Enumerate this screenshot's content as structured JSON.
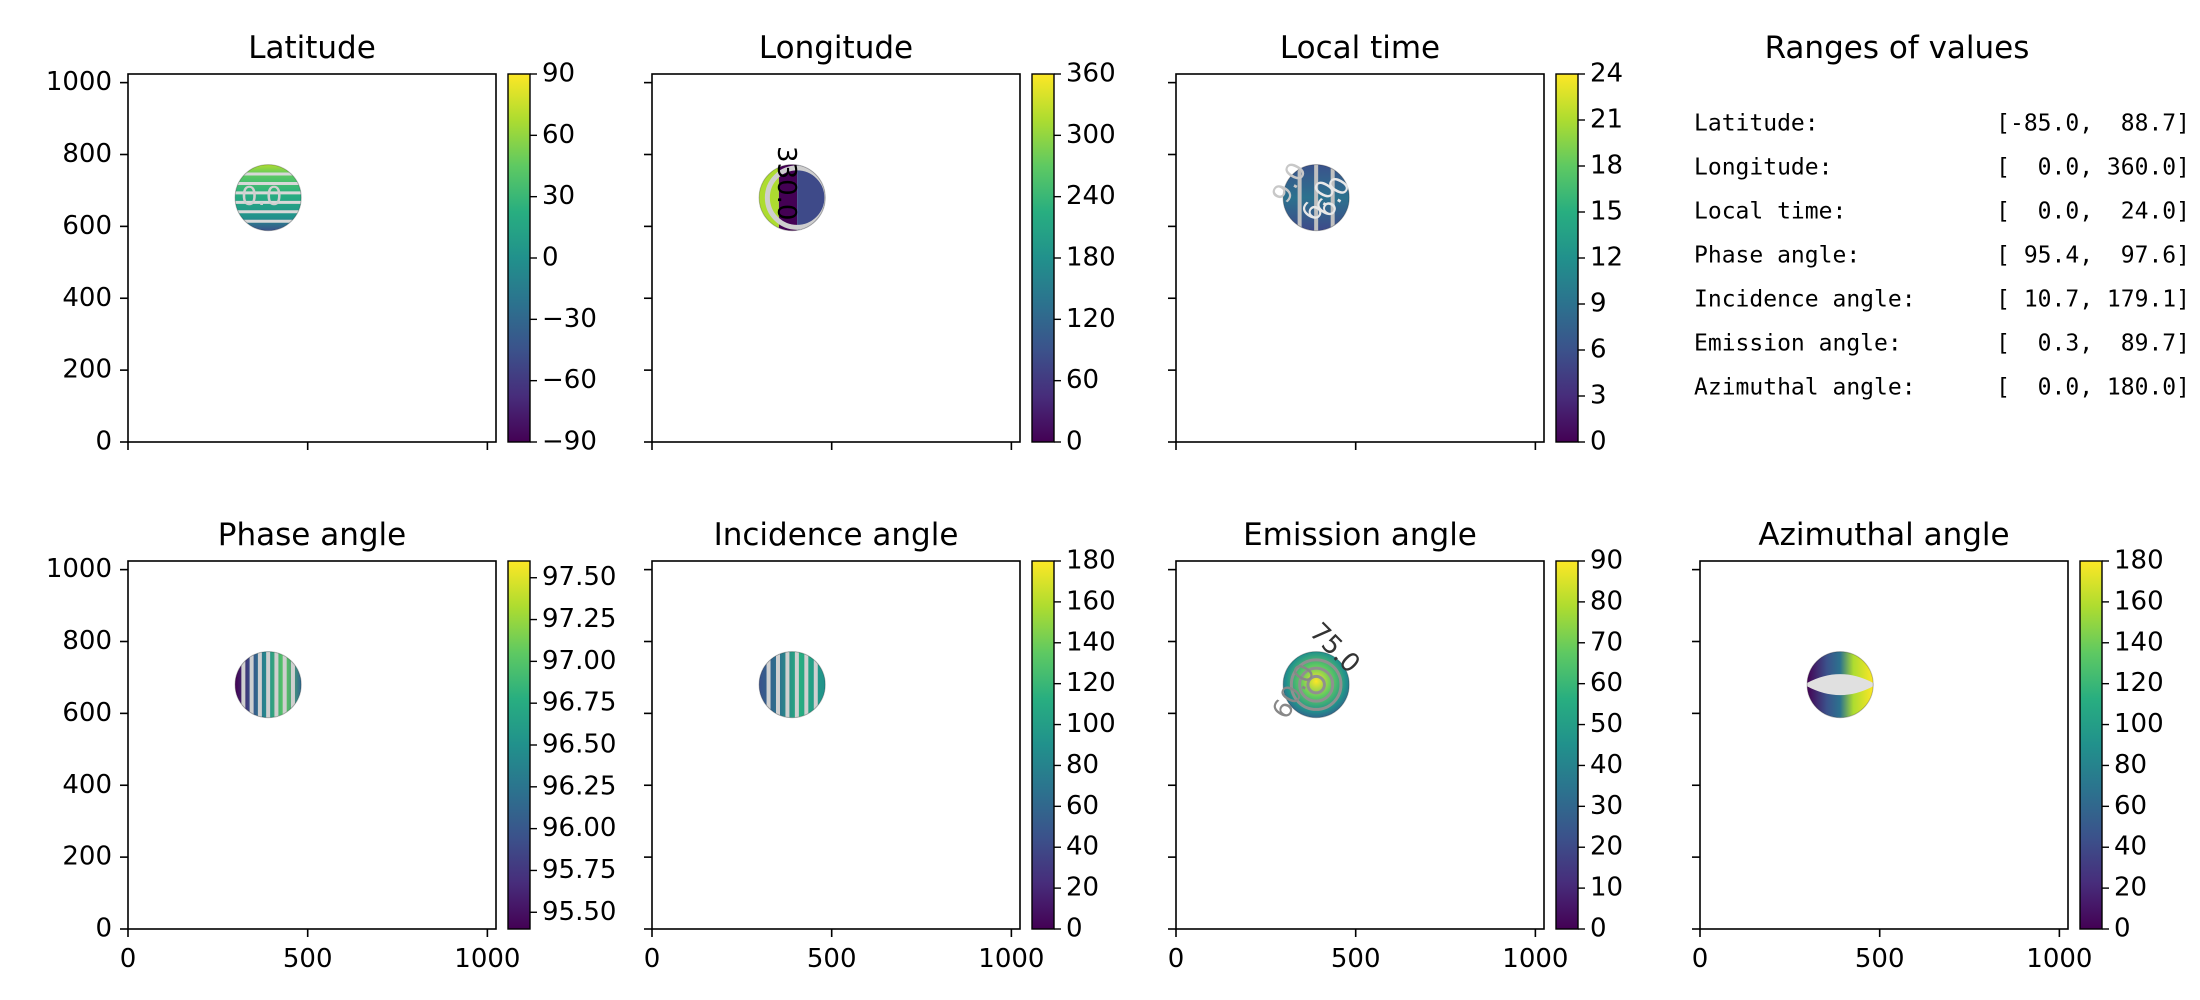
{
  "chart_data": [
    {
      "type": "heatmap",
      "title": "Latitude",
      "disk": {
        "cx": 390,
        "cy": 680,
        "r": 92
      },
      "xlim": [
        0,
        1024
      ],
      "ylim": [
        0,
        1024
      ],
      "x_ticks": [],
      "y_ticks": [
        0,
        200,
        400,
        600,
        800,
        1000
      ],
      "colorbar": {
        "min": -90,
        "max": 90,
        "ticks": [
          -90,
          -60,
          -30,
          0,
          30,
          60,
          90
        ],
        "tick_labels": [
          "−90",
          "−60",
          "−30",
          "0",
          "30",
          "60",
          "90"
        ]
      },
      "contour_labels": [
        {
          "text": "0.0",
          "x": 372,
          "y": 680,
          "color": "#d0d0d0",
          "rotate": 0
        }
      ]
    },
    {
      "type": "heatmap",
      "title": "Longitude",
      "disk": {
        "cx": 390,
        "cy": 680,
        "r": 92
      },
      "xlim": [
        0,
        1024
      ],
      "ylim": [
        0,
        1024
      ],
      "x_ticks": [],
      "y_ticks": [],
      "colorbar": {
        "min": 0,
        "max": 360,
        "ticks": [
          0,
          60,
          120,
          180,
          240,
          300,
          360
        ],
        "tick_labels": [
          "0",
          "60",
          "120",
          "180",
          "240",
          "300",
          "360"
        ]
      },
      "contour_labels": [
        {
          "text": "330.0",
          "x": 372,
          "y": 720,
          "color": "#000000",
          "rotate": 90
        }
      ]
    },
    {
      "type": "heatmap",
      "title": "Local time",
      "disk": {
        "cx": 390,
        "cy": 680,
        "r": 92
      },
      "xlim": [
        0,
        1024
      ],
      "ylim": [
        0,
        1024
      ],
      "x_ticks": [],
      "y_ticks": [],
      "colorbar": {
        "min": 0,
        "max": 24,
        "ticks": [
          0,
          3,
          6,
          9,
          12,
          15,
          18,
          21,
          24
        ],
        "tick_labels": [
          "0",
          "3",
          "6",
          "9",
          "12",
          "15",
          "18",
          "21",
          "24"
        ]
      },
      "contour_labels": [
        {
          "text": "6.0",
          "x": 400,
          "y": 670,
          "color": "#e8e8e8",
          "rotate": -60
        },
        {
          "text": "9.0",
          "x": 318,
          "y": 720,
          "color": "#c8c8c8",
          "rotate": -60
        },
        {
          "text": "6.0",
          "x": 440,
          "y": 680,
          "color": "#e8e8e8",
          "rotate": -60
        }
      ]
    },
    {
      "type": "heatmap",
      "title": "Phase angle",
      "disk": {
        "cx": 390,
        "cy": 680,
        "r": 92
      },
      "xlim": [
        0,
        1024
      ],
      "ylim": [
        0,
        1024
      ],
      "x_ticks": [],
      "y_ticks": [
        0,
        200,
        400,
        600,
        800,
        1000
      ],
      "colorbar": {
        "min": 95.4,
        "max": 97.6,
        "ticks": [
          95.5,
          95.75,
          96.0,
          96.25,
          96.5,
          96.75,
          97.0,
          97.25,
          97.5
        ],
        "tick_labels": [
          "95.50",
          "95.75",
          "96.00",
          "96.25",
          "96.50",
          "96.75",
          "97.00",
          "97.25",
          "97.50"
        ]
      },
      "contour_labels": []
    },
    {
      "type": "heatmap",
      "title": "Incidence angle",
      "disk": {
        "cx": 390,
        "cy": 680,
        "r": 92
      },
      "xlim": [
        0,
        1024
      ],
      "ylim": [
        0,
        1024
      ],
      "x_ticks": [],
      "y_ticks": [],
      "colorbar": {
        "min": 0,
        "max": 180,
        "ticks": [
          0,
          20,
          40,
          60,
          80,
          100,
          120,
          140,
          160,
          180
        ],
        "tick_labels": [
          "0",
          "20",
          "40",
          "60",
          "80",
          "100",
          "120",
          "140",
          "160",
          "180"
        ]
      },
      "contour_labels": []
    },
    {
      "type": "heatmap",
      "title": "Emission angle",
      "disk": {
        "cx": 390,
        "cy": 680,
        "r": 92
      },
      "xlim": [
        0,
        1024
      ],
      "ylim": [
        0,
        1024
      ],
      "x_ticks": [],
      "y_ticks": [],
      "colorbar": {
        "min": 0,
        "max": 90,
        "ticks": [
          0,
          10,
          20,
          30,
          40,
          50,
          60,
          70,
          80,
          90
        ],
        "tick_labels": [
          "0",
          "10",
          "20",
          "30",
          "40",
          "50",
          "60",
          "70",
          "80",
          "90"
        ]
      },
      "contour_labels": [
        {
          "text": "75.0",
          "x": 440,
          "y": 780,
          "color": "#333333",
          "rotate": 45
        },
        {
          "text": "60.0",
          "x": 330,
          "y": 660,
          "color": "#888888",
          "rotate": -60
        }
      ]
    },
    {
      "type": "heatmap",
      "title": "Azimuthal angle",
      "disk": {
        "cx": 390,
        "cy": 680,
        "r": 92
      },
      "xlim": [
        0,
        1024
      ],
      "ylim": [
        0,
        1024
      ],
      "x_ticks": [
        0,
        500,
        1000
      ],
      "y_ticks": [],
      "colorbar": {
        "min": 0,
        "max": 180,
        "ticks": [
          0,
          20,
          40,
          60,
          80,
          100,
          120,
          140,
          160,
          180
        ],
        "tick_labels": [
          "0",
          "20",
          "40",
          "60",
          "80",
          "100",
          "120",
          "140",
          "160",
          "180"
        ]
      },
      "contour_labels": []
    }
  ],
  "ranges_panel": {
    "title": "Ranges of values",
    "rows": [
      {
        "label": "Latitude:",
        "range": "[-85.0,  88.7]"
      },
      {
        "label": "Longitude:",
        "range": "[  0.0, 360.0]"
      },
      {
        "label": "Local time:",
        "range": "[  0.0,  24.0]"
      },
      {
        "label": "Phase angle:",
        "range": "[ 95.4,  97.6]"
      },
      {
        "label": "Incidence angle:",
        "range": "[ 10.7, 179.1]"
      },
      {
        "label": "Emission angle:",
        "range": "[  0.3,  89.7]"
      },
      {
        "label": "Azimuthal angle:",
        "range": "[  0.0, 180.0]"
      }
    ]
  },
  "colormap": "viridis"
}
